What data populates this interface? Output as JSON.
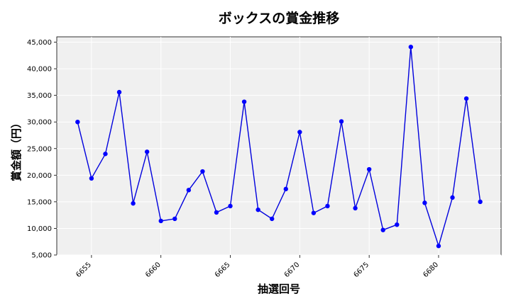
{
  "chart_data": {
    "type": "line",
    "title": "ボックスの賞金推移",
    "xlabel": "抽選回号",
    "ylabel": "賞金額（円）",
    "xlim": [
      6652.5,
      6684.5
    ],
    "ylim": [
      5000,
      46000
    ],
    "xticks": [
      6655,
      6660,
      6665,
      6670,
      6675,
      6680
    ],
    "yticks": [
      5000,
      10000,
      15000,
      20000,
      25000,
      30000,
      35000,
      40000,
      45000
    ],
    "ytick_labels": [
      "5,000",
      "10,000",
      "15,000",
      "20,000",
      "25,000",
      "30,000",
      "35,000",
      "40,000",
      "45,000"
    ],
    "grid": true,
    "colors": {
      "line": "#0000dd",
      "marker": "#0000ff",
      "plot_background": "#f0f0f0",
      "grid": "#ffffff"
    },
    "series": [
      {
        "x": [
          6654,
          6655,
          6656,
          6657,
          6658,
          6659,
          6660,
          6661,
          6662,
          6663,
          6664,
          6665,
          6666,
          6667,
          6668,
          6669,
          6670,
          6671,
          6672,
          6673,
          6674,
          6675,
          6676,
          6677,
          6678,
          6679,
          6680,
          6681,
          6682,
          6683
        ],
        "y": [
          30000,
          19400,
          24000,
          35600,
          14700,
          24400,
          11400,
          11800,
          17200,
          20700,
          13000,
          14200,
          33800,
          13500,
          11800,
          17400,
          28100,
          12900,
          14200,
          30100,
          13800,
          21100,
          9700,
          10700,
          44100,
          14800,
          6700,
          15800,
          34400,
          15000
        ]
      }
    ]
  }
}
